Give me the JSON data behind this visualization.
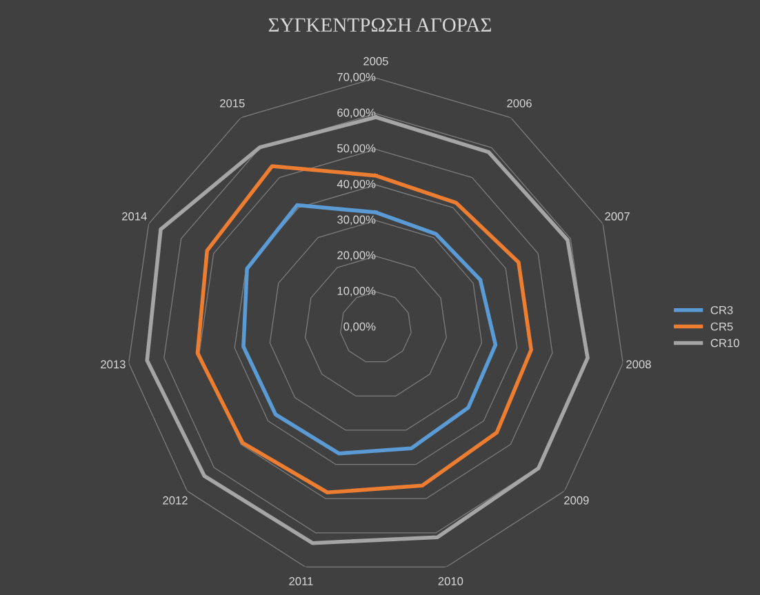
{
  "chart_data": {
    "type": "radar",
    "title": "ΣΥΓΚΕΝΤΡΩΣΗ ΑΓΟΡΑΣ",
    "categories": [
      "2005",
      "2006",
      "2007",
      "2008",
      "2009",
      "2010",
      "2011",
      "2012",
      "2013",
      "2014",
      "2015"
    ],
    "series": [
      {
        "name": "CR3",
        "color": "#5b9bd5",
        "values": [
          32.3,
          31.2,
          32.2,
          33.9,
          34.3,
          35.3,
          36.8,
          37.2,
          37.5,
          39.7,
          40.8
        ]
      },
      {
        "name": "CR5",
        "color": "#ed7d31",
        "values": [
          42.6,
          41.6,
          44.0,
          44.0,
          44.9,
          46.2,
          48.2,
          49.4,
          50.5,
          52.0,
          53.8
        ]
      },
      {
        "name": "CR10",
        "color": "#a5a5a5",
        "values": [
          59.0,
          58.5,
          59.1,
          60.0,
          60.3,
          61.3,
          63.0,
          63.6,
          64.8,
          66.3,
          60.1
        ]
      }
    ],
    "ylim": [
      0,
      70
    ],
    "yticks": [
      {
        "value": 0,
        "label": "0,00%"
      },
      {
        "value": 10,
        "label": "10,00%"
      },
      {
        "value": 20,
        "label": "20,00%"
      },
      {
        "value": 30,
        "label": "30,00%"
      },
      {
        "value": 40,
        "label": "40,00%"
      },
      {
        "value": 50,
        "label": "50,00%"
      },
      {
        "value": 60,
        "label": "60,00%"
      },
      {
        "value": 70,
        "label": "70,00%"
      }
    ],
    "grid": true,
    "legend": "right",
    "marker": "none",
    "line_style": "solid"
  }
}
